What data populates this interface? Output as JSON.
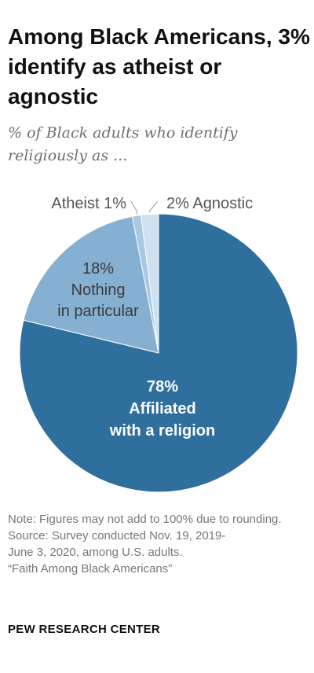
{
  "header": {
    "title": "Among Black Americans, 3% identify as atheist or agnostic",
    "subtitle": "% of Black adults who identify religiously as ..."
  },
  "chart_data": {
    "type": "pie",
    "start_angle_deg": 0,
    "direction": "clockwise",
    "slices": [
      {
        "label": "Affiliated with a religion",
        "value": 78,
        "display": [
          "78%",
          "Affiliated",
          "with a religion"
        ],
        "color": "#2e6f9d",
        "text_color": "#ffffff",
        "bold": true
      },
      {
        "label": "Nothing in particular",
        "value": 18,
        "display": [
          "18%",
          "Nothing",
          "in particular"
        ],
        "color": "#86b0d2",
        "text_color": "#3b3b3b",
        "bold": false
      },
      {
        "label": "Atheist",
        "value": 1,
        "display": [
          "Atheist 1%"
        ],
        "color": "#a9c9e2",
        "text_color": "#555555",
        "bold": false
      },
      {
        "label": "Agnostic",
        "value": 2,
        "display": [
          "2% Agnostic"
        ],
        "color": "#cfe0ee",
        "text_color": "#555555",
        "bold": false
      }
    ]
  },
  "footer": {
    "note": "Note: Figures may not add to 100% due to rounding.",
    "source_lines": [
      "Source: Survey conducted Nov. 19, 2019-",
      "June 3, 2020, among U.S. adults.",
      "“Faith Among Black Americans”"
    ],
    "brand": "PEW RESEARCH CENTER"
  }
}
